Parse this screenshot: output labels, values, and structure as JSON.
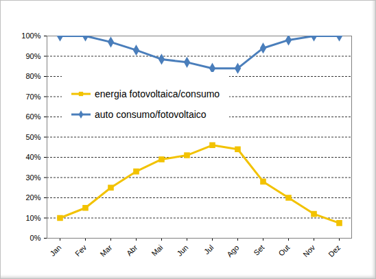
{
  "chart_data": {
    "type": "line",
    "categories": [
      "Jan",
      "Fev",
      "Mar",
      "Abr",
      "Mai",
      "Jun",
      "Jul",
      "Ago",
      "Set",
      "Out",
      "Nov",
      "Dez"
    ],
    "series": [
      {
        "name": "energia fotovoltaica/consumo",
        "color": "#f2c200",
        "marker": "square",
        "values": [
          10,
          15,
          25,
          33,
          39,
          41,
          46,
          44,
          28,
          20,
          12,
          7.5
        ]
      },
      {
        "name": "auto consumo/fotovoltaico",
        "color": "#4a7ebb",
        "marker": "diamond",
        "values": [
          100,
          100,
          97,
          93,
          88.5,
          87,
          84,
          84,
          94,
          98,
          100,
          100
        ]
      }
    ],
    "ylim": [
      0,
      100
    ],
    "yticks": [
      {
        "value": 0,
        "label": "0%"
      },
      {
        "value": 10,
        "label": "10%"
      },
      {
        "value": 20,
        "label": "20%"
      },
      {
        "value": 30,
        "label": "30%"
      },
      {
        "value": 40,
        "label": "40%"
      },
      {
        "value": 50,
        "label": "50%"
      },
      {
        "value": 60,
        "label": "60%"
      },
      {
        "value": 70,
        "label": "70%"
      },
      {
        "value": 80,
        "label": "80%"
      },
      {
        "value": 90,
        "label": "90%"
      },
      {
        "value": 100,
        "label": "100%"
      }
    ],
    "grid": true,
    "legend": "upper left"
  }
}
